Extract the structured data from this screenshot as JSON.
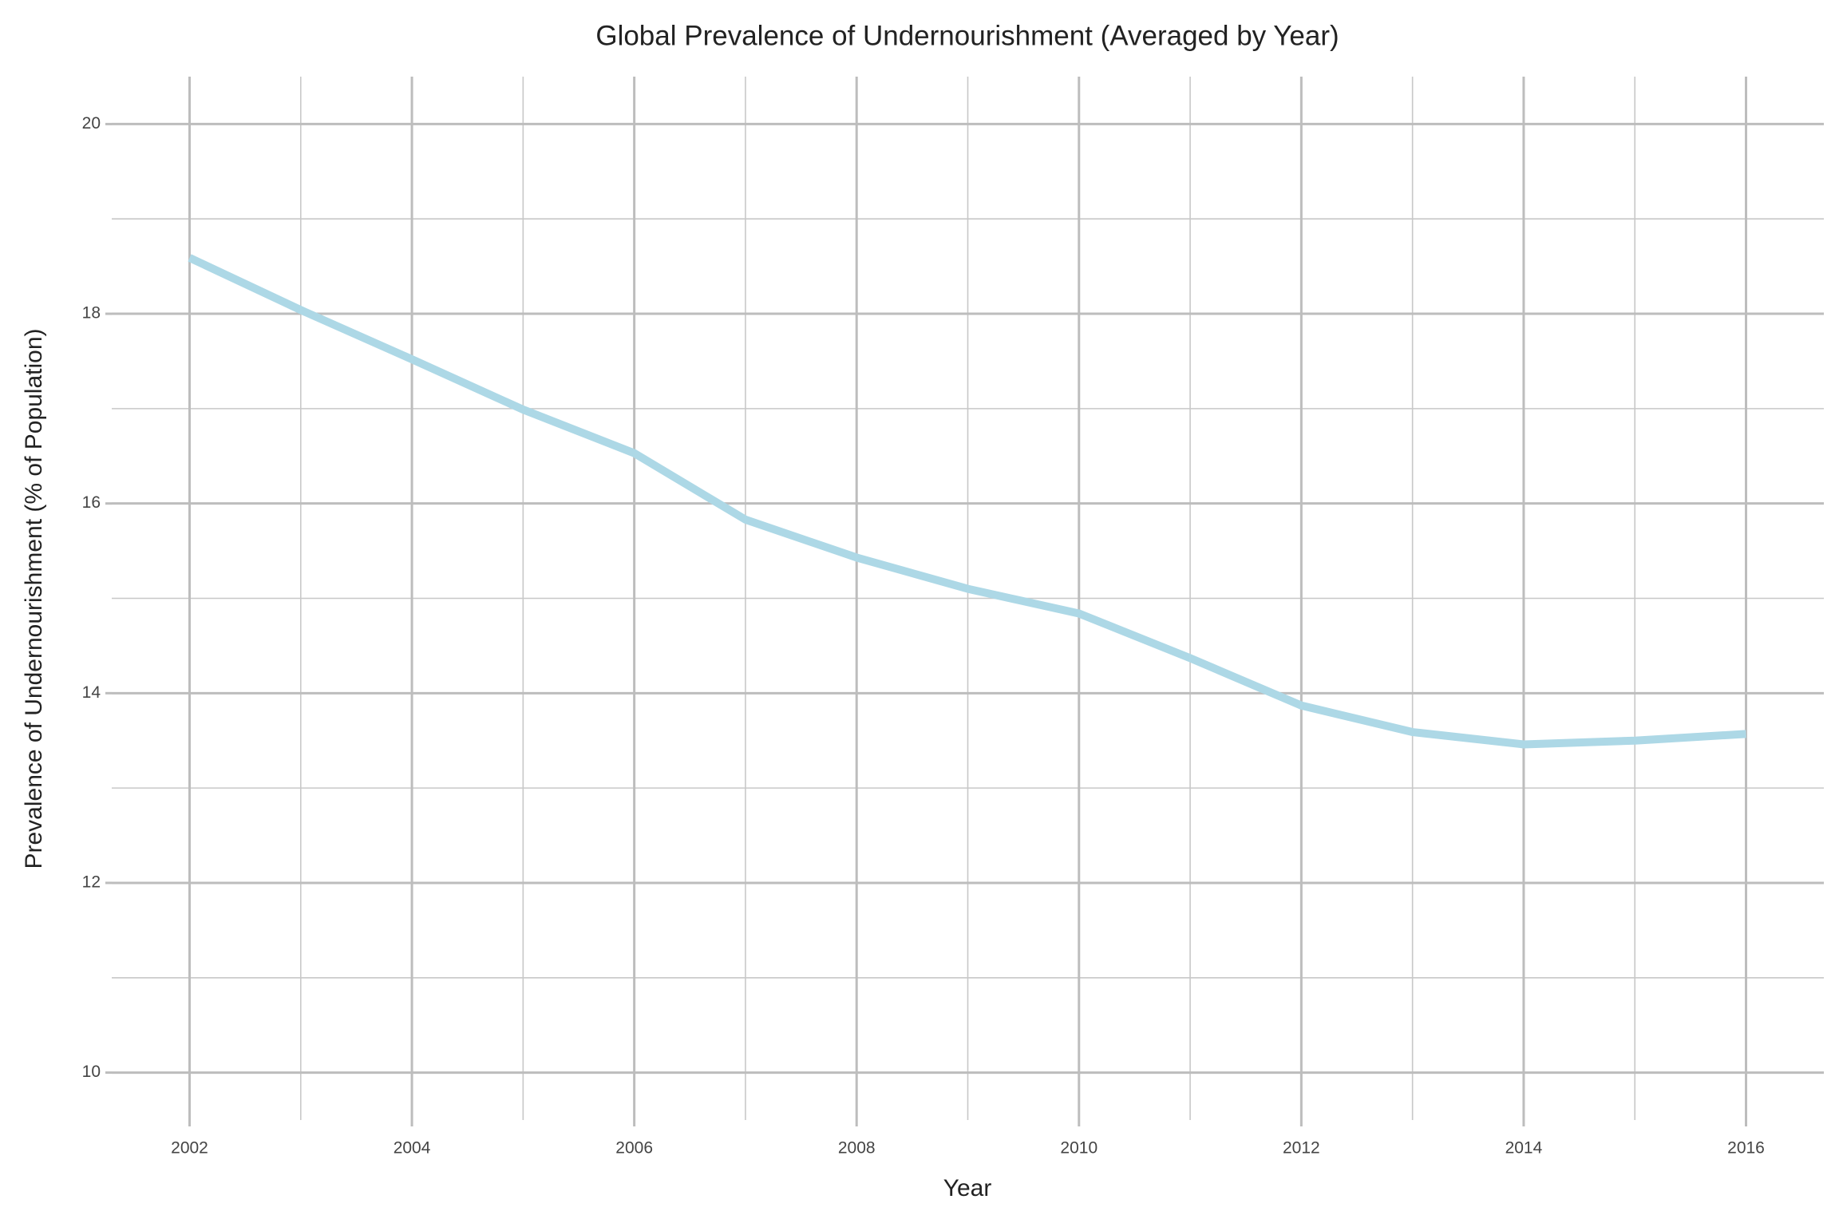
{
  "chart_data": {
    "type": "line",
    "title": "Global Prevalence of Undernourishment (Averaged by Year)",
    "x_label": "Year",
    "y_label": "Prevalence of Undernourishment (% of Population)",
    "x": [
      2002,
      2003,
      2004,
      2005,
      2006,
      2007,
      2008,
      2009,
      2010,
      2011,
      2012,
      2013,
      2014,
      2015,
      2016
    ],
    "series": [
      {
        "name": "Prevalence",
        "color": "#add8e6",
        "values": [
          18.59,
          18.04,
          17.52,
          16.99,
          16.53,
          15.83,
          15.43,
          15.1,
          14.84,
          14.37,
          13.87,
          13.59,
          13.46,
          13.5,
          13.57
        ]
      }
    ],
    "xlim": [
      2001.3,
      2016.7
    ],
    "xticks": [
      2002,
      2004,
      2006,
      2008,
      2010,
      2012,
      2014,
      2016
    ],
    "ylim": [
      9.5,
      20.5
    ],
    "yticks": [
      10,
      12,
      14,
      16,
      18,
      20
    ],
    "grid": true,
    "minor_grid": true
  }
}
